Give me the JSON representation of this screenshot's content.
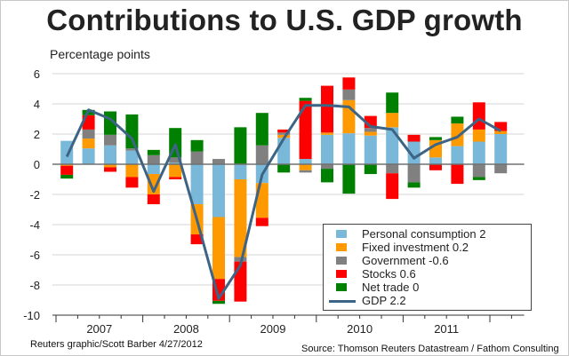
{
  "chart_data": {
    "type": "bar",
    "title": "Contributions to U.S. GDP growth",
    "ylabel": "Percentage points",
    "ylim": [
      -10,
      6
    ],
    "yticks": [
      6,
      4,
      2,
      0,
      -2,
      -4,
      -6,
      -8,
      -10
    ],
    "grid": true,
    "legend_position": "bottom-right",
    "categories": [
      "2007Q1",
      "2007Q2",
      "2007Q3",
      "2007Q4",
      "2008Q1",
      "2008Q2",
      "2008Q3",
      "2008Q4",
      "2009Q1",
      "2009Q2",
      "2009Q3",
      "2009Q4",
      "2010Q1",
      "2010Q2",
      "2010Q3",
      "2010Q4",
      "2011Q1",
      "2011Q2",
      "2011Q3",
      "2011Q4",
      "2012Q1"
    ],
    "year_labels": [
      "2007",
      "2008",
      "2009",
      "2010",
      "2011"
    ],
    "series": [
      {
        "name": "Personal consumption 2",
        "color": "#7ab8d9",
        "values": [
          1.55,
          1.05,
          1.25,
          0.9,
          -0.65,
          0.1,
          -2.65,
          -3.5,
          -1.0,
          -1.25,
          1.75,
          0.35,
          1.95,
          2.05,
          1.9,
          2.45,
          1.5,
          0.45,
          1.2,
          1.5,
          2.0
        ]
      },
      {
        "name": "Fixed investment 0.2",
        "color": "#ff9900",
        "values": [
          -0.1,
          0.65,
          -0.2,
          -0.85,
          -1.35,
          -0.85,
          -2.0,
          -4.1,
          -5.15,
          -2.3,
          0.2,
          -0.4,
          0.15,
          2.2,
          0.25,
          0.95,
          0.0,
          1.15,
          1.5,
          0.8,
          0.2
        ]
      },
      {
        "name": "Government -0.6",
        "color": "#808080",
        "values": [
          0.0,
          0.6,
          0.7,
          0.15,
          0.6,
          0.35,
          0.85,
          0.35,
          -0.3,
          1.25,
          0.15,
          -0.15,
          -0.3,
          0.7,
          0.25,
          -0.6,
          -1.2,
          0.0,
          0.0,
          -0.85,
          -0.6
        ]
      },
      {
        "name": "Stocks 0.6",
        "color": "#ff0000",
        "values": [
          -0.6,
          0.95,
          -0.3,
          -0.7,
          -0.65,
          -0.15,
          -0.65,
          -1.45,
          -2.65,
          -0.55,
          0.2,
          3.85,
          3.1,
          0.8,
          0.8,
          -1.7,
          0.45,
          -0.4,
          -1.3,
          1.8,
          0.6
        ]
      },
      {
        "name": "Net trade 0",
        "color": "#008000",
        "values": [
          -0.25,
          0.35,
          1.55,
          2.25,
          0.35,
          1.95,
          0.75,
          -0.2,
          2.45,
          2.15,
          -0.55,
          0.2,
          -0.9,
          -1.95,
          -0.65,
          1.35,
          -0.35,
          0.2,
          0.45,
          -0.2,
          0.0
        ]
      }
    ],
    "line": {
      "name": "GDP 2.2",
      "color": "#3d6484",
      "values": [
        0.5,
        3.6,
        3.0,
        1.7,
        -1.8,
        1.3,
        -3.7,
        -8.9,
        -6.7,
        -0.7,
        1.7,
        3.9,
        3.9,
        3.8,
        2.5,
        2.3,
        0.4,
        1.3,
        1.8,
        3.0,
        2.2
      ]
    }
  },
  "footer": {
    "credit": "Reuters graphic/Scott Barber 4/27/2012",
    "source": "Source: Thomson Reuters Datastream / Fathom Consulting"
  }
}
